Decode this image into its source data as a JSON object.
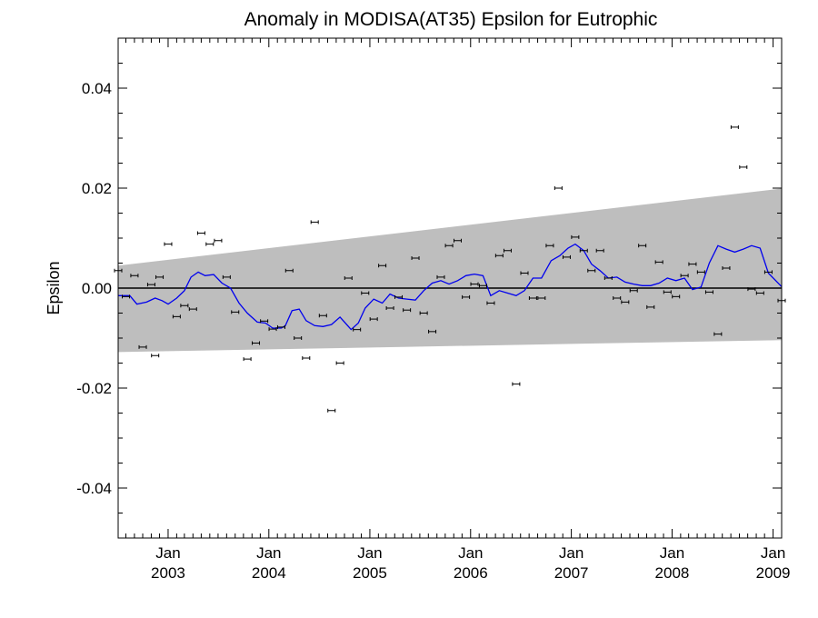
{
  "chart_data": {
    "type": "scatter",
    "title": "Anomaly in MODISA(AT35) Epsilon for Eutrophic",
    "ylabel": "Epsilon",
    "xlabel": "",
    "ylim": [
      -0.05,
      0.05
    ],
    "xlim": [
      "2002-07-04",
      "2009-02-01"
    ],
    "y_ticks": [
      {
        "value": 0.04,
        "label": "0.04"
      },
      {
        "value": 0.02,
        "label": "0.02"
      },
      {
        "value": 0.0,
        "label": "0.00"
      },
      {
        "value": -0.02,
        "label": "-0.02"
      },
      {
        "value": -0.04,
        "label": "-0.04"
      }
    ],
    "x_ticks": [
      {
        "date": "2003-01-01",
        "month": "Jan",
        "year": "2003"
      },
      {
        "date": "2004-01-01",
        "month": "Jan",
        "year": "2004"
      },
      {
        "date": "2005-01-01",
        "month": "Jan",
        "year": "2005"
      },
      {
        "date": "2006-01-01",
        "month": "Jan",
        "year": "2006"
      },
      {
        "date": "2007-01-01",
        "month": "Jan",
        "year": "2007"
      },
      {
        "date": "2008-01-01",
        "month": "Jan",
        "year": "2008"
      },
      {
        "date": "2009-01-01",
        "month": "Jan",
        "year": "2009"
      }
    ],
    "zero_line": 0.0,
    "confidence_band": {
      "color": "#bebebe",
      "upper": [
        {
          "x": "2002-07-04",
          "y": 0.0045
        },
        {
          "x": "2009-02-01",
          "y": 0.0199
        }
      ],
      "lower": [
        {
          "x": "2002-07-04",
          "y": -0.0128
        },
        {
          "x": "2009-02-01",
          "y": -0.0104
        }
      ]
    },
    "series": [
      {
        "kind": "points_with_error_bars",
        "color": "#000000",
        "points": [
          {
            "x": "2002-07-04",
            "y": 0.0035
          },
          {
            "x": "2002-08-01",
            "y": -0.0017
          },
          {
            "x": "2002-09-01",
            "y": 0.0025
          },
          {
            "x": "2002-10-01",
            "y": -0.0118
          },
          {
            "x": "2002-11-01",
            "y": 0.0007
          },
          {
            "x": "2002-11-15",
            "y": -0.0135
          },
          {
            "x": "2002-12-01",
            "y": 0.0022
          },
          {
            "x": "2003-01-01",
            "y": 0.0088
          },
          {
            "x": "2003-02-01",
            "y": -0.0057
          },
          {
            "x": "2003-03-01",
            "y": -0.0035
          },
          {
            "x": "2003-04-01",
            "y": -0.0042
          },
          {
            "x": "2003-05-01",
            "y": 0.011
          },
          {
            "x": "2003-06-01",
            "y": 0.0088
          },
          {
            "x": "2003-07-01",
            "y": 0.0095
          },
          {
            "x": "2003-08-01",
            "y": 0.0022
          },
          {
            "x": "2003-09-01",
            "y": -0.0048
          },
          {
            "x": "2003-10-15",
            "y": -0.0142
          },
          {
            "x": "2003-11-15",
            "y": -0.011
          },
          {
            "x": "2003-12-15",
            "y": -0.0066
          },
          {
            "x": "2004-01-15",
            "y": -0.0082
          },
          {
            "x": "2004-02-15",
            "y": -0.0078
          },
          {
            "x": "2004-03-15",
            "y": 0.0035
          },
          {
            "x": "2004-04-15",
            "y": -0.01
          },
          {
            "x": "2004-05-15",
            "y": -0.014
          },
          {
            "x": "2004-06-15",
            "y": 0.0132
          },
          {
            "x": "2004-07-15",
            "y": -0.0055
          },
          {
            "x": "2004-08-15",
            "y": -0.0245
          },
          {
            "x": "2004-09-15",
            "y": -0.015
          },
          {
            "x": "2004-10-15",
            "y": 0.002
          },
          {
            "x": "2004-11-15",
            "y": -0.0083
          },
          {
            "x": "2004-12-15",
            "y": -0.001
          },
          {
            "x": "2005-01-15",
            "y": -0.0062
          },
          {
            "x": "2005-02-15",
            "y": 0.0045
          },
          {
            "x": "2005-03-15",
            "y": -0.004
          },
          {
            "x": "2005-04-15",
            "y": -0.0018
          },
          {
            "x": "2005-05-15",
            "y": -0.0044
          },
          {
            "x": "2005-06-15",
            "y": 0.006
          },
          {
            "x": "2005-07-15",
            "y": -0.005
          },
          {
            "x": "2005-08-15",
            "y": -0.0087
          },
          {
            "x": "2005-09-15",
            "y": 0.0022
          },
          {
            "x": "2005-10-15",
            "y": 0.0085
          },
          {
            "x": "2005-11-15",
            "y": 0.0095
          },
          {
            "x": "2005-12-15",
            "y": -0.0018
          },
          {
            "x": "2006-01-15",
            "y": 0.0008
          },
          {
            "x": "2006-02-15",
            "y": 0.0005
          },
          {
            "x": "2006-03-15",
            "y": -0.003
          },
          {
            "x": "2006-04-15",
            "y": 0.0065
          },
          {
            "x": "2006-05-15",
            "y": 0.0075
          },
          {
            "x": "2006-06-15",
            "y": -0.0192
          },
          {
            "x": "2006-07-15",
            "y": 0.003
          },
          {
            "x": "2006-08-15",
            "y": -0.002
          },
          {
            "x": "2006-09-15",
            "y": -0.002
          },
          {
            "x": "2006-10-15",
            "y": 0.0085
          },
          {
            "x": "2006-11-15",
            "y": 0.02
          },
          {
            "x": "2006-12-15",
            "y": 0.0062
          },
          {
            "x": "2007-01-15",
            "y": 0.0102
          },
          {
            "x": "2007-02-15",
            "y": 0.0075
          },
          {
            "x": "2007-03-15",
            "y": 0.0035
          },
          {
            "x": "2007-04-15",
            "y": 0.0075
          },
          {
            "x": "2007-05-15",
            "y": 0.002
          },
          {
            "x": "2007-06-15",
            "y": -0.002
          },
          {
            "x": "2007-07-15",
            "y": -0.0028
          },
          {
            "x": "2007-08-15",
            "y": -0.0005
          },
          {
            "x": "2007-09-15",
            "y": 0.0085
          },
          {
            "x": "2007-10-15",
            "y": -0.0038
          },
          {
            "x": "2007-11-15",
            "y": 0.0052
          },
          {
            "x": "2007-12-15",
            "y": -0.0008
          },
          {
            "x": "2008-01-15",
            "y": -0.0017
          },
          {
            "x": "2008-02-15",
            "y": 0.0025
          },
          {
            "x": "2008-03-15",
            "y": 0.0048
          },
          {
            "x": "2008-04-15",
            "y": 0.0032
          },
          {
            "x": "2008-05-15",
            "y": -0.0008
          },
          {
            "x": "2008-06-15",
            "y": -0.0092
          },
          {
            "x": "2008-07-15",
            "y": 0.004
          },
          {
            "x": "2008-08-15",
            "y": 0.0322
          },
          {
            "x": "2008-09-15",
            "y": 0.0242
          },
          {
            "x": "2008-10-15",
            "y": -0.0002
          },
          {
            "x": "2008-11-15",
            "y": -0.001
          },
          {
            "x": "2008-12-15",
            "y": 0.0032
          },
          {
            "x": "2009-02-01",
            "y": -0.0025
          }
        ]
      },
      {
        "kind": "line",
        "color": "#0000ee",
        "points": [
          {
            "x": "2002-07-04",
            "y": -0.0015
          },
          {
            "x": "2002-08-15",
            "y": -0.0015
          },
          {
            "x": "2002-09-10",
            "y": -0.0032
          },
          {
            "x": "2002-10-15",
            "y": -0.0028
          },
          {
            "x": "2002-11-15",
            "y": -0.002
          },
          {
            "x": "2002-12-10",
            "y": -0.0025
          },
          {
            "x": "2003-01-01",
            "y": -0.0032
          },
          {
            "x": "2003-02-01",
            "y": -0.002
          },
          {
            "x": "2003-03-01",
            "y": -0.0005
          },
          {
            "x": "2003-03-25",
            "y": 0.0022
          },
          {
            "x": "2003-04-20",
            "y": 0.0032
          },
          {
            "x": "2003-05-15",
            "y": 0.0025
          },
          {
            "x": "2003-06-15",
            "y": 0.0027
          },
          {
            "x": "2003-07-15",
            "y": 0.001
          },
          {
            "x": "2003-08-15",
            "y": 0.0
          },
          {
            "x": "2003-09-15",
            "y": -0.003
          },
          {
            "x": "2003-10-15",
            "y": -0.005
          },
          {
            "x": "2003-11-20",
            "y": -0.0068
          },
          {
            "x": "2003-12-20",
            "y": -0.007
          },
          {
            "x": "2004-01-15",
            "y": -0.008
          },
          {
            "x": "2004-02-15",
            "y": -0.008
          },
          {
            "x": "2004-03-01",
            "y": -0.0075
          },
          {
            "x": "2004-03-25",
            "y": -0.0045
          },
          {
            "x": "2004-04-20",
            "y": -0.0042
          },
          {
            "x": "2004-05-15",
            "y": -0.0065
          },
          {
            "x": "2004-06-15",
            "y": -0.0075
          },
          {
            "x": "2004-07-15",
            "y": -0.0077
          },
          {
            "x": "2004-08-15",
            "y": -0.0073
          },
          {
            "x": "2004-09-15",
            "y": -0.0058
          },
          {
            "x": "2004-10-25",
            "y": -0.0083
          },
          {
            "x": "2004-11-20",
            "y": -0.007
          },
          {
            "x": "2004-12-15",
            "y": -0.004
          },
          {
            "x": "2005-01-15",
            "y": -0.0022
          },
          {
            "x": "2005-02-15",
            "y": -0.003
          },
          {
            "x": "2005-03-15",
            "y": -0.0012
          },
          {
            "x": "2005-04-15",
            "y": -0.002
          },
          {
            "x": "2005-05-15",
            "y": -0.0022
          },
          {
            "x": "2005-06-15",
            "y": -0.0024
          },
          {
            "x": "2005-07-15",
            "y": -0.0005
          },
          {
            "x": "2005-08-15",
            "y": 0.001
          },
          {
            "x": "2005-09-15",
            "y": 0.0015
          },
          {
            "x": "2005-10-15",
            "y": 0.0008
          },
          {
            "x": "2005-11-15",
            "y": 0.0015
          },
          {
            "x": "2005-12-15",
            "y": 0.0025
          },
          {
            "x": "2006-01-15",
            "y": 0.0028
          },
          {
            "x": "2006-02-15",
            "y": 0.0025
          },
          {
            "x": "2006-03-15",
            "y": -0.0015
          },
          {
            "x": "2006-04-15",
            "y": -0.0005
          },
          {
            "x": "2006-05-15",
            "y": -0.001
          },
          {
            "x": "2006-06-15",
            "y": -0.0015
          },
          {
            "x": "2006-07-15",
            "y": -0.0005
          },
          {
            "x": "2006-08-15",
            "y": 0.002
          },
          {
            "x": "2006-09-15",
            "y": 0.002
          },
          {
            "x": "2006-10-20",
            "y": 0.0055
          },
          {
            "x": "2006-11-20",
            "y": 0.0065
          },
          {
            "x": "2006-12-20",
            "y": 0.008
          },
          {
            "x": "2007-01-15",
            "y": 0.0088
          },
          {
            "x": "2007-02-15",
            "y": 0.0075
          },
          {
            "x": "2007-03-15",
            "y": 0.0048
          },
          {
            "x": "2007-04-15",
            "y": 0.0035
          },
          {
            "x": "2007-05-15",
            "y": 0.002
          },
          {
            "x": "2007-06-15",
            "y": 0.0022
          },
          {
            "x": "2007-07-15",
            "y": 0.0012
          },
          {
            "x": "2007-08-15",
            "y": 0.0008
          },
          {
            "x": "2007-09-15",
            "y": 0.0005
          },
          {
            "x": "2007-10-15",
            "y": 0.0005
          },
          {
            "x": "2007-11-15",
            "y": 0.001
          },
          {
            "x": "2007-12-15",
            "y": 0.002
          },
          {
            "x": "2008-01-15",
            "y": 0.0015
          },
          {
            "x": "2008-02-15",
            "y": 0.002
          },
          {
            "x": "2008-03-15",
            "y": -0.0003
          },
          {
            "x": "2008-04-15",
            "y": 0.0002
          },
          {
            "x": "2008-05-15",
            "y": 0.005
          },
          {
            "x": "2008-06-15",
            "y": 0.0085
          },
          {
            "x": "2008-07-15",
            "y": 0.0078
          },
          {
            "x": "2008-08-15",
            "y": 0.0072
          },
          {
            "x": "2008-09-15",
            "y": 0.0078
          },
          {
            "x": "2008-10-15",
            "y": 0.0085
          },
          {
            "x": "2008-11-15",
            "y": 0.008
          },
          {
            "x": "2008-12-15",
            "y": 0.003
          },
          {
            "x": "2009-02-01",
            "y": 0.0003
          }
        ]
      }
    ]
  }
}
